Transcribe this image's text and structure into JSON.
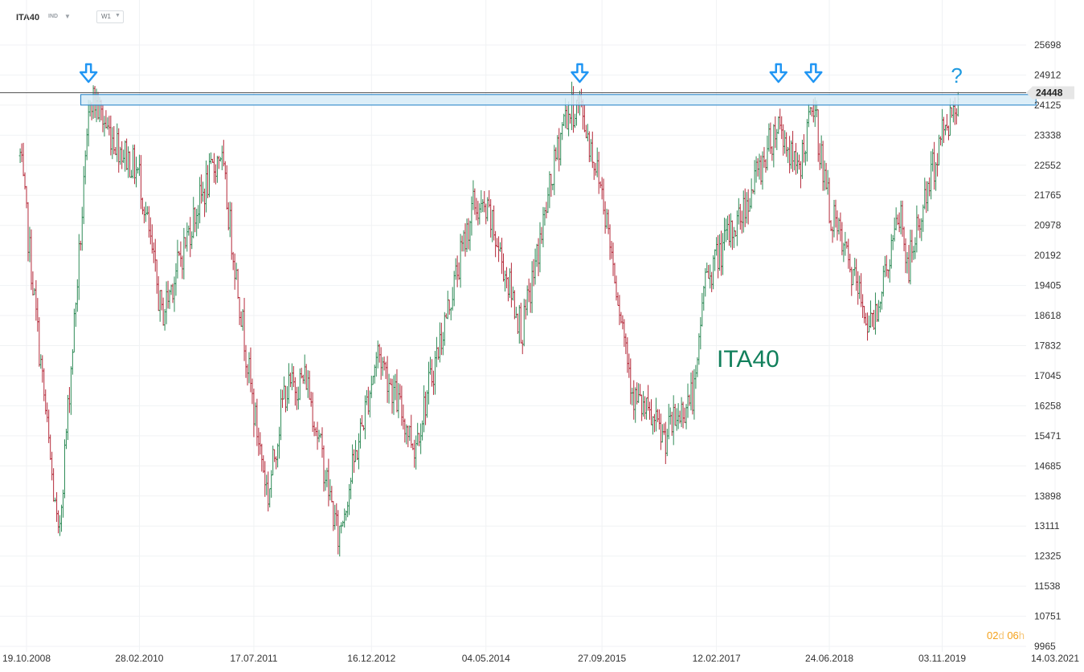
{
  "header": {
    "symbol": "ITA40",
    "symbol_type": "IND",
    "timeframe": "W1"
  },
  "countdown": {
    "days": "02",
    "days_unit": "d",
    "hours": "06",
    "hours_unit": "h"
  },
  "colors": {
    "up_bar": "#2e8b57",
    "down_bar": "#b52a3a",
    "resistance_fill": "#d6ebf7",
    "resistance_stroke": "#1e7fc6",
    "arrow": "#2196f3",
    "title": "#12805c",
    "price_tag": "#e6e6e6"
  },
  "icons": [
    "arrow-down-icon",
    "question-mark-icon",
    "chevron-down-icon"
  ],
  "chart_data": {
    "type": "ohlc",
    "title": "ITA40",
    "timeframe": "W1",
    "y_ticks": [
      25698,
      24912,
      24125,
      23338,
      22552,
      21765,
      20978,
      20192,
      19405,
      18618,
      17832,
      17045,
      16258,
      15471,
      14685,
      13898,
      13111,
      12325,
      11538,
      10751,
      9965
    ],
    "ylim": [
      9965,
      25698
    ],
    "x_ticks": [
      "19.10.2008",
      "28.02.2010",
      "17.07.2011",
      "16.12.2012",
      "04.05.2014",
      "27.09.2015",
      "12.02.2017",
      "24.06.2018",
      "03.11.2019",
      "14.03.2021"
    ],
    "xlim": [
      "19.10.2008",
      "14.03.2021"
    ],
    "current_price": 24448,
    "current_price_label": "24448",
    "resistance_zone": [
      24125,
      24400
    ],
    "resistance_start": "2009-06-15",
    "resistance_end": "2020-12-20",
    "arrow_marks": [
      "2009-07-19",
      "2015-06-21",
      "2017-11-12",
      "2018-04-15"
    ],
    "question_mark": {
      "text": "?",
      "date": "2020-01-05"
    },
    "anchors": [
      {
        "date": "2008-09-21",
        "price": 22800
      },
      {
        "date": "2009-03-08",
        "price": 12700
      },
      {
        "date": "2009-07-12",
        "price": 23000
      },
      {
        "date": "2009-07-26",
        "price": 24450
      },
      {
        "date": "2009-10-11",
        "price": 23500
      },
      {
        "date": "2010-02-28",
        "price": 22300
      },
      {
        "date": "2010-06-06",
        "price": 18600
      },
      {
        "date": "2010-10-31",
        "price": 21300
      },
      {
        "date": "2011-02-20",
        "price": 22900
      },
      {
        "date": "2011-07-17",
        "price": 16100
      },
      {
        "date": "2011-09-18",
        "price": 13900
      },
      {
        "date": "2011-11-27",
        "price": 16600
      },
      {
        "date": "2012-03-04",
        "price": 17000
      },
      {
        "date": "2012-07-22",
        "price": 12800
      },
      {
        "date": "2013-01-13",
        "price": 17700
      },
      {
        "date": "2013-06-23",
        "price": 15200
      },
      {
        "date": "2014-03-09",
        "price": 21500
      },
      {
        "date": "2014-05-18",
        "price": 21200
      },
      {
        "date": "2014-10-12",
        "price": 18200
      },
      {
        "date": "2015-04-12",
        "price": 23800
      },
      {
        "date": "2015-06-21",
        "price": 24150
      },
      {
        "date": "2015-09-27",
        "price": 21900
      },
      {
        "date": "2016-02-14",
        "price": 16500
      },
      {
        "date": "2016-06-26",
        "price": 15400
      },
      {
        "date": "2016-11-13",
        "price": 16700
      },
      {
        "date": "2016-12-18",
        "price": 19500
      },
      {
        "date": "2017-06-04",
        "price": 21300
      },
      {
        "date": "2017-11-12",
        "price": 23700
      },
      {
        "date": "2018-02-04",
        "price": 22300
      },
      {
        "date": "2018-04-15",
        "price": 24100
      },
      {
        "date": "2018-06-24",
        "price": 21400
      },
      {
        "date": "2018-12-23",
        "price": 18300
      },
      {
        "date": "2019-05-05",
        "price": 21300
      },
      {
        "date": "2019-06-02",
        "price": 19800
      },
      {
        "date": "2019-11-03",
        "price": 23400
      },
      {
        "date": "2020-01-19",
        "price": 24400
      }
    ]
  }
}
